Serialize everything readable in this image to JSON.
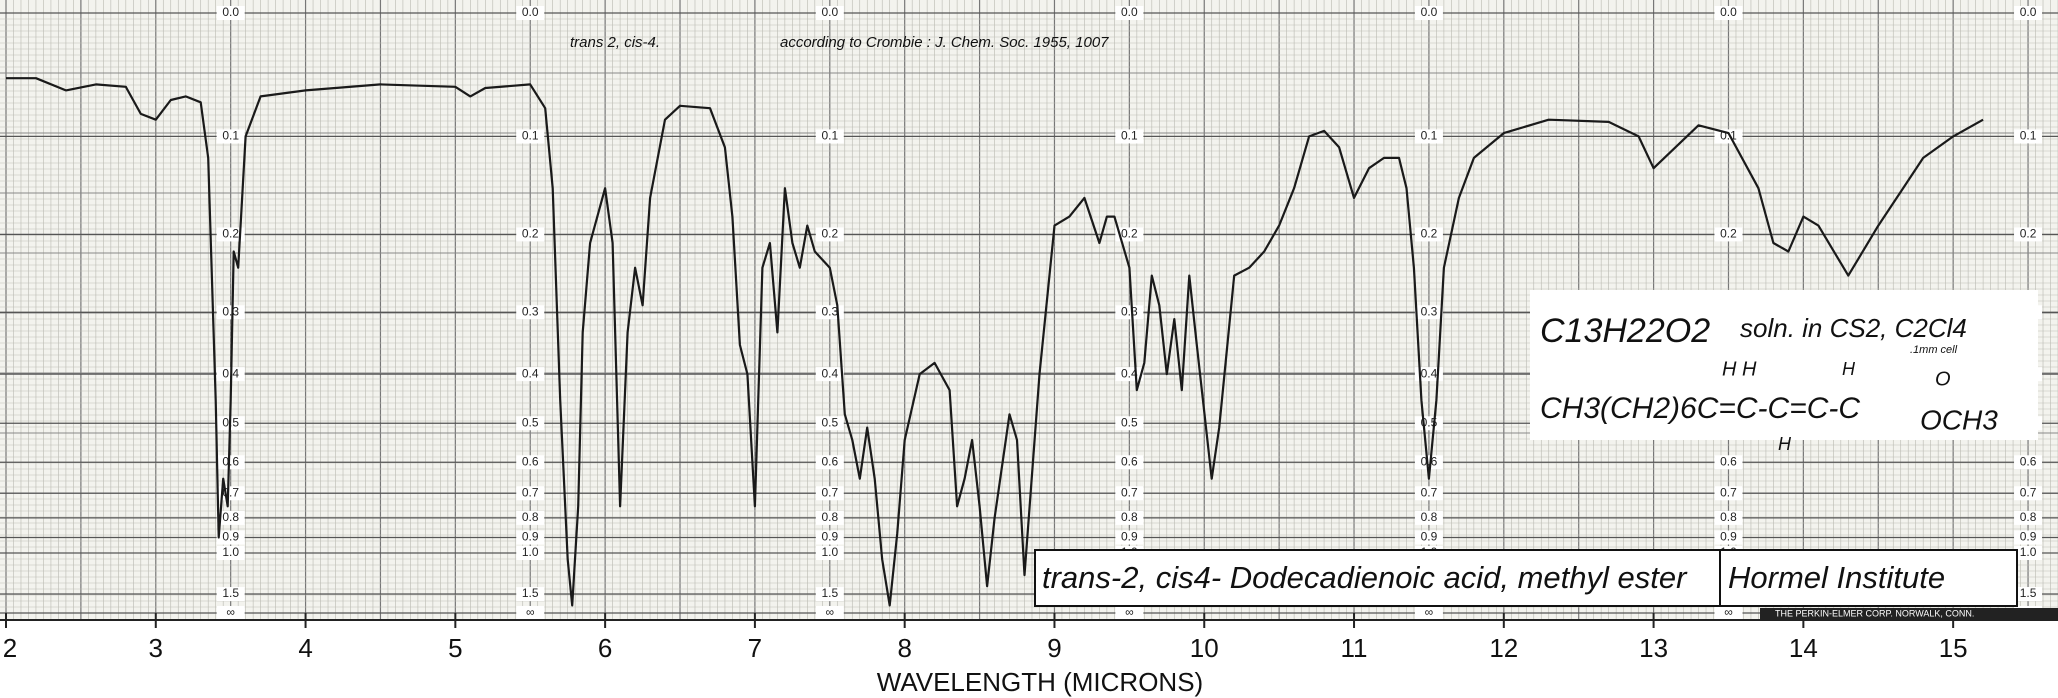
{
  "chart_data": {
    "type": "line",
    "xlabel": "WAVELENGTH (MICRONS)",
    "color": "#1a1a1a",
    "grid": true,
    "y_scale": "transmittance",
    "xlim": [
      2,
      15.7
    ],
    "xticks": [
      2,
      3,
      4,
      5,
      6,
      7,
      8,
      9,
      10,
      11,
      12,
      13,
      14,
      15
    ],
    "ylim": [
      0,
      null
    ],
    "yticks": [
      {
        "value": 0,
        "label": "0.0"
      },
      0.1,
      0.2,
      0.3,
      0.4,
      0.5,
      0.6,
      0.7,
      0.8,
      0.9,
      {
        "value": 1,
        "label": "1.0"
      },
      1.5,
      {
        "value": null,
        "label": "∞"
      }
    ],
    "annotations": [
      "trans 2, cis-4.",
      "according to Crombie : J. Chem. Soc. 1955, 1007",
      "C13H22O2",
      "soln. in CS2, C2Cl4",
      ".1mm cell",
      "CH3(CH2)6C=C-C=C-C",
      "OCH3",
      "H  H",
      "H",
      "H",
      "O",
      "trans-2, cis4- Dodecadienoic acid, methyl ester",
      "Hormel Institute",
      "THE PERKIN-ELMER CORP. NORWALK, CONN."
    ],
    "x": [
      2.0,
      2.2,
      2.4,
      2.6,
      2.8,
      2.9,
      3.0,
      3.1,
      3.2,
      3.3,
      3.35,
      3.4,
      3.42,
      3.45,
      3.48,
      3.5,
      3.52,
      3.55,
      3.6,
      3.7,
      4.0,
      4.5,
      5.0,
      5.1,
      5.2,
      5.5,
      5.6,
      5.65,
      5.7,
      5.75,
      5.78,
      5.82,
      5.85,
      5.9,
      6.0,
      6.05,
      6.1,
      6.15,
      6.2,
      6.25,
      6.3,
      6.4,
      6.5,
      6.7,
      6.8,
      6.85,
      6.9,
      6.95,
      7.0,
      7.05,
      7.1,
      7.15,
      7.2,
      7.25,
      7.3,
      7.35,
      7.4,
      7.5,
      7.55,
      7.6,
      7.65,
      7.7,
      7.75,
      7.8,
      7.85,
      7.9,
      7.95,
      8.0,
      8.1,
      8.2,
      8.3,
      8.35,
      8.4,
      8.45,
      8.5,
      8.55,
      8.6,
      8.7,
      8.75,
      8.8,
      8.9,
      9.0,
      9.1,
      9.2,
      9.3,
      9.35,
      9.4,
      9.5,
      9.55,
      9.6,
      9.65,
      9.7,
      9.75,
      9.8,
      9.85,
      9.9,
      9.95,
      10.05,
      10.1,
      10.2,
      10.3,
      10.4,
      10.5,
      10.6,
      10.7,
      10.8,
      10.9,
      11.0,
      11.1,
      11.2,
      11.3,
      11.35,
      11.4,
      11.45,
      11.5,
      11.55,
      11.6,
      11.7,
      11.8,
      12.0,
      12.3,
      12.7,
      12.9,
      13.0,
      13.3,
      13.5,
      13.7,
      13.8,
      13.9,
      14.0,
      14.1,
      14.3,
      14.5,
      14.8,
      15.0,
      15.2
    ],
    "values": [
      0.05,
      0.05,
      0.06,
      0.055,
      0.057,
      0.08,
      0.085,
      0.068,
      0.065,
      0.07,
      0.12,
      0.45,
      0.9,
      0.65,
      0.75,
      0.45,
      0.22,
      0.24,
      0.1,
      0.065,
      0.06,
      0.055,
      0.057,
      0.065,
      0.058,
      0.055,
      0.075,
      0.15,
      0.45,
      1.05,
      1.9,
      0.75,
      0.33,
      0.21,
      0.15,
      0.21,
      0.75,
      0.33,
      0.24,
      0.29,
      0.16,
      0.085,
      0.073,
      0.075,
      0.11,
      0.18,
      0.35,
      0.4,
      0.75,
      0.24,
      0.21,
      0.33,
      0.15,
      0.21,
      0.24,
      0.19,
      0.22,
      0.24,
      0.29,
      0.48,
      0.54,
      0.65,
      0.51,
      0.65,
      1.05,
      1.9,
      0.88,
      0.54,
      0.4,
      0.38,
      0.43,
      0.75,
      0.65,
      0.54,
      0.75,
      1.35,
      0.8,
      0.48,
      0.54,
      1.2,
      0.4,
      0.19,
      0.18,
      0.16,
      0.21,
      0.18,
      0.18,
      0.24,
      0.43,
      0.38,
      0.25,
      0.29,
      0.4,
      0.31,
      0.43,
      0.25,
      0.35,
      0.65,
      0.51,
      0.25,
      0.24,
      0.22,
      0.19,
      0.15,
      0.1,
      0.095,
      0.11,
      0.16,
      0.13,
      0.12,
      0.12,
      0.15,
      0.24,
      0.45,
      0.65,
      0.45,
      0.24,
      0.16,
      0.12,
      0.097,
      0.085,
      0.087,
      0.1,
      0.13,
      0.09,
      0.097,
      0.15,
      0.21,
      0.22,
      0.18,
      0.19,
      0.25,
      0.19,
      0.12,
      0.1,
      0.085
    ]
  }
}
